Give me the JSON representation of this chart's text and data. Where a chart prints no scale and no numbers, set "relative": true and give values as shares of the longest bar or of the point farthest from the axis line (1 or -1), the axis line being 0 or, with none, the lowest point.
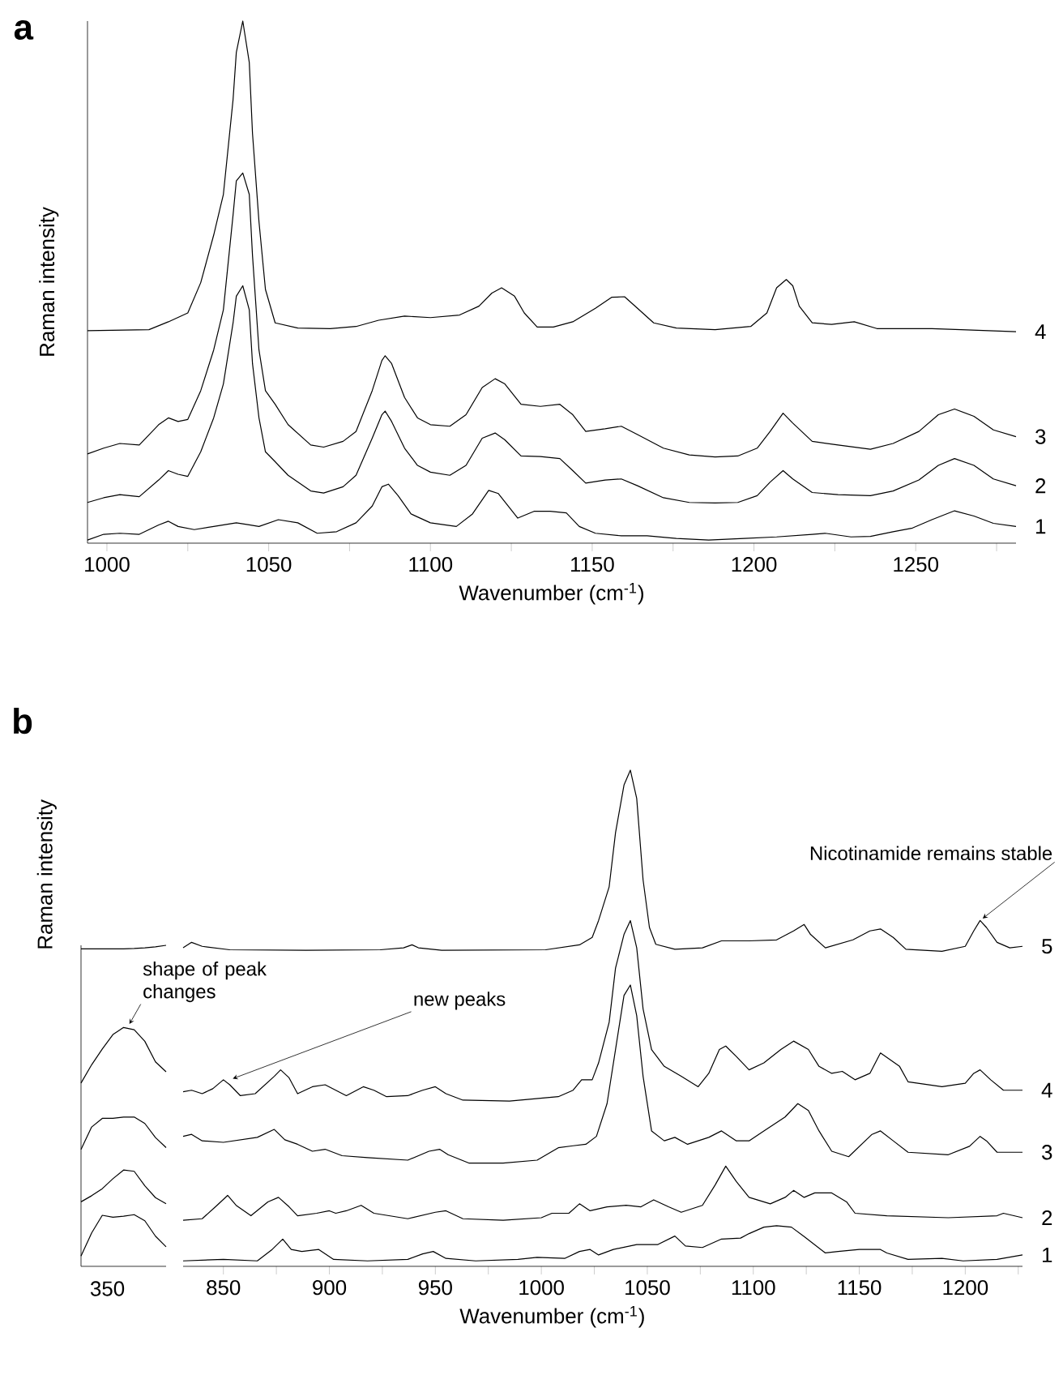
{
  "chart_data": [
    {
      "type": "line",
      "title": "a",
      "xlabel": "Wavenumber (cm$^{-1}$)",
      "ylabel": "Raman intensity",
      "relative": true,
      "xlim": [
        994,
        1281
      ],
      "xticks": [
        1000,
        {
          "value": 1025,
          "label": null
        },
        1050,
        {
          "value": 1075,
          "label": null
        },
        1100,
        {
          "value": 1125,
          "label": null
        },
        1150,
        {
          "value": 1175,
          "label": null
        },
        1200,
        {
          "value": 1225,
          "label": null
        },
        1250,
        {
          "value": 1275,
          "label": null
        }
      ],
      "series": [
        {
          "name": "1",
          "color": "#000000",
          "x": [
            994,
            999,
            1004,
            1010,
            1016,
            1019,
            1022,
            1027,
            1033,
            1040,
            1044,
            1047,
            1053,
            1059,
            1065,
            1071,
            1077,
            1082,
            1085,
            1087,
            1090,
            1094,
            1100,
            1108,
            1113,
            1118,
            1121,
            1127,
            1132,
            1137,
            1142,
            1146,
            1151,
            1159,
            1167,
            1176,
            1186,
            1197,
            1207,
            1218,
            1222,
            1230,
            1236,
            1243,
            1249,
            1255,
            1262,
            1268,
            1274,
            1281
          ],
          "values": [
            0.006,
            0.017,
            0.019,
            0.017,
            0.035,
            0.042,
            0.032,
            0.026,
            0.032,
            0.039,
            0.035,
            0.032,
            0.045,
            0.039,
            0.019,
            0.022,
            0.039,
            0.071,
            0.108,
            0.113,
            0.091,
            0.056,
            0.039,
            0.032,
            0.056,
            0.101,
            0.095,
            0.048,
            0.061,
            0.061,
            0.058,
            0.032,
            0.019,
            0.014,
            0.014,
            0.009,
            0.006,
            0.009,
            0.012,
            0.017,
            0.019,
            0.012,
            0.013,
            0.022,
            0.029,
            0.045,
            0.062,
            0.052,
            0.038,
            0.032
          ]
        },
        {
          "name": "2",
          "color": "#000000",
          "x": [
            994,
            999,
            1004,
            1010,
            1016,
            1019,
            1022,
            1025,
            1029,
            1033,
            1036,
            1039,
            1040,
            1042,
            1044,
            1045,
            1047,
            1049,
            1052,
            1056,
            1063,
            1067,
            1073,
            1077,
            1082,
            1085,
            1086,
            1088,
            1092,
            1096,
            1100,
            1106,
            1111,
            1116,
            1120,
            1123,
            1128,
            1134,
            1140,
            1144,
            1148,
            1154,
            1159,
            1164,
            1172,
            1180,
            1188,
            1195,
            1201,
            1205,
            1209,
            1212,
            1218,
            1226,
            1236,
            1243,
            1251,
            1257,
            1262,
            1268,
            1274,
            1281
          ],
          "values": [
            0.078,
            0.087,
            0.093,
            0.089,
            0.121,
            0.139,
            0.132,
            0.128,
            0.175,
            0.24,
            0.305,
            0.422,
            0.473,
            0.493,
            0.447,
            0.344,
            0.24,
            0.175,
            0.156,
            0.13,
            0.1,
            0.096,
            0.108,
            0.13,
            0.201,
            0.246,
            0.253,
            0.233,
            0.182,
            0.149,
            0.136,
            0.13,
            0.149,
            0.201,
            0.211,
            0.198,
            0.167,
            0.166,
            0.162,
            0.139,
            0.115,
            0.121,
            0.123,
            0.11,
            0.087,
            0.078,
            0.077,
            0.078,
            0.091,
            0.117,
            0.139,
            0.123,
            0.097,
            0.093,
            0.091,
            0.1,
            0.121,
            0.149,
            0.162,
            0.149,
            0.123,
            0.11
          ]
        },
        {
          "name": "3",
          "color": "#000000",
          "x": [
            994,
            999,
            1004,
            1010,
            1016,
            1019,
            1022,
            1025,
            1029,
            1033,
            1036,
            1039,
            1040,
            1042,
            1044,
            1045,
            1047,
            1049,
            1052,
            1056,
            1063,
            1067,
            1073,
            1077,
            1082,
            1085,
            1086,
            1088,
            1092,
            1096,
            1100,
            1106,
            1111,
            1116,
            1120,
            1123,
            1128,
            1134,
            1140,
            1144,
            1148,
            1154,
            1159,
            1164,
            1172,
            1180,
            1188,
            1195,
            1201,
            1205,
            1209,
            1212,
            1218,
            1226,
            1236,
            1243,
            1251,
            1257,
            1262,
            1268,
            1274,
            1281
          ],
          "values": [
            0.171,
            0.182,
            0.191,
            0.188,
            0.227,
            0.24,
            0.233,
            0.237,
            0.292,
            0.37,
            0.447,
            0.629,
            0.694,
            0.709,
            0.668,
            0.551,
            0.37,
            0.292,
            0.266,
            0.227,
            0.188,
            0.184,
            0.195,
            0.214,
            0.292,
            0.35,
            0.359,
            0.344,
            0.279,
            0.24,
            0.227,
            0.224,
            0.246,
            0.298,
            0.315,
            0.305,
            0.266,
            0.262,
            0.266,
            0.246,
            0.214,
            0.219,
            0.224,
            0.208,
            0.182,
            0.169,
            0.165,
            0.167,
            0.182,
            0.214,
            0.249,
            0.23,
            0.195,
            0.188,
            0.18,
            0.191,
            0.214,
            0.246,
            0.257,
            0.243,
            0.217,
            0.204
          ]
        },
        {
          "name": "4",
          "color": "#000000",
          "x": [
            994,
            1013,
            1019,
            1025,
            1029,
            1033,
            1036,
            1039,
            1040,
            1042,
            1044,
            1045,
            1047,
            1049,
            1052,
            1059,
            1069,
            1077,
            1084,
            1092,
            1100,
            1109,
            1115,
            1119,
            1122,
            1126,
            1129,
            1133,
            1138,
            1144,
            1151,
            1156,
            1160,
            1164,
            1169,
            1176,
            1188,
            1199,
            1204,
            1207,
            1210,
            1212,
            1214,
            1218,
            1224,
            1231,
            1238,
            1255,
            1264,
            1281
          ],
          "values": [
            0.407,
            0.409,
            0.424,
            0.441,
            0.499,
            0.59,
            0.668,
            0.85,
            0.94,
            1.0,
            0.921,
            0.785,
            0.616,
            0.486,
            0.422,
            0.412,
            0.411,
            0.415,
            0.427,
            0.435,
            0.432,
            0.437,
            0.454,
            0.479,
            0.489,
            0.473,
            0.441,
            0.414,
            0.414,
            0.424,
            0.45,
            0.471,
            0.472,
            0.45,
            0.422,
            0.412,
            0.409,
            0.415,
            0.441,
            0.489,
            0.505,
            0.493,
            0.454,
            0.422,
            0.419,
            0.424,
            0.411,
            0.411,
            0.409,
            0.405
          ]
        }
      ]
    },
    {
      "type": "line",
      "title": "b",
      "ylabel": "Raman intensity",
      "relative": true,
      "categories": [
        null,
        null,
        null,
        null,
        null,
        null,
        null,
        null,
        null
      ],
      "annotations": [
        "shape of peak changes",
        "350"
      ],
      "series": [
        {
          "color": "#000000",
          "values": [
            0.032,
            0.104,
            0.159,
            0.153,
            0.156,
            0.161,
            0.142,
            0.094,
            0.061
          ]
        },
        {
          "color": "#000000",
          "values": [
            0.201,
            0.22,
            0.242,
            0.273,
            0.3,
            0.296,
            0.251,
            0.214,
            0.195
          ]
        },
        {
          "color": "#000000",
          "values": [
            0.364,
            0.434,
            0.461,
            0.461,
            0.465,
            0.465,
            0.445,
            0.401,
            0.37
          ]
        },
        {
          "color": "#000000",
          "values": [
            0.571,
            0.628,
            0.677,
            0.722,
            0.744,
            0.737,
            0.701,
            0.637,
            0.606
          ]
        },
        {
          "color": "#000000",
          "values": [
            0.989,
            0.989,
            0.989,
            0.989,
            0.989,
            0.99,
            0.992,
            0.995,
            1.0
          ]
        }
      ]
    },
    {
      "type": "line",
      "xlabel": "Wavenumber (cm$^{-1}$)",
      "relative": true,
      "xlim": [
        831,
        1227
      ],
      "xticks": [
        850,
        {
          "value": 875,
          "label": null
        },
        900,
        {
          "value": 925,
          "label": null
        },
        950,
        {
          "value": 975,
          "label": null
        },
        1000,
        {
          "value": 1025,
          "label": null
        },
        1050,
        {
          "value": 1075,
          "label": null
        },
        1100,
        {
          "value": 1125,
          "label": null
        },
        1150,
        {
          "value": 1175,
          "label": null
        },
        1200,
        {
          "value": 1225,
          "label": null
        }
      ],
      "annotations": [
        {
          "text": "new peaks",
          "x": 853,
          "y": 0.376
        },
        {
          "text": "Nicotinamide remains stable",
          "x": 1207,
          "y": 0.697
        }
      ],
      "series": [
        {
          "name": "1",
          "color": "#000000",
          "x": [
            831,
            850,
            866,
            873,
            878,
            882,
            887,
            895,
            902,
            918,
            937,
            944,
            949,
            955,
            969,
            989,
            998,
            1011,
            1018,
            1023,
            1027,
            1034,
            1045,
            1055,
            1063,
            1068,
            1076,
            1085,
            1094,
            1098,
            1105,
            1111,
            1118,
            1124,
            1134,
            1140,
            1150,
            1160,
            1163,
            1173,
            1189,
            1199,
            1215,
            1227
          ],
          "values": [
            0.011,
            0.014,
            0.011,
            0.034,
            0.055,
            0.034,
            0.03,
            0.034,
            0.014,
            0.011,
            0.014,
            0.025,
            0.03,
            0.016,
            0.011,
            0.014,
            0.018,
            0.016,
            0.03,
            0.034,
            0.023,
            0.034,
            0.044,
            0.044,
            0.061,
            0.041,
            0.038,
            0.055,
            0.057,
            0.066,
            0.079,
            0.082,
            0.079,
            0.06,
            0.027,
            0.03,
            0.034,
            0.034,
            0.027,
            0.014,
            0.016,
            0.011,
            0.014,
            0.023
          ]
        },
        {
          "name": "2",
          "color": "#000000",
          "x": [
            831,
            840,
            847,
            852,
            856,
            863,
            871,
            876,
            881,
            885,
            894,
            900,
            903,
            908,
            915,
            921,
            937,
            950,
            955,
            963,
            982,
            1000,
            1005,
            1013,
            1018,
            1023,
            1031,
            1040,
            1047,
            1053,
            1060,
            1066,
            1076,
            1082,
            1087,
            1092,
            1098,
            1108,
            1115,
            1119,
            1124,
            1129,
            1137,
            1144,
            1148,
            1163,
            1192,
            1215,
            1218,
            1227
          ],
          "values": [
            0.093,
            0.096,
            0.123,
            0.143,
            0.123,
            0.102,
            0.13,
            0.139,
            0.12,
            0.102,
            0.107,
            0.112,
            0.107,
            0.112,
            0.123,
            0.107,
            0.096,
            0.109,
            0.112,
            0.096,
            0.093,
            0.098,
            0.107,
            0.107,
            0.126,
            0.112,
            0.12,
            0.123,
            0.12,
            0.134,
            0.12,
            0.109,
            0.123,
            0.164,
            0.202,
            0.171,
            0.139,
            0.126,
            0.139,
            0.153,
            0.139,
            0.148,
            0.148,
            0.13,
            0.107,
            0.102,
            0.098,
            0.102,
            0.107,
            0.098
          ]
        },
        {
          "name": "3",
          "color": "#000000",
          "x": [
            831,
            835,
            840,
            850,
            866,
            874,
            879,
            885,
            892,
            898,
            906,
            918,
            937,
            947,
            952,
            956,
            966,
            982,
            998,
            1008,
            1015,
            1021,
            1026,
            1031,
            1035,
            1039,
            1042,
            1045,
            1048,
            1052,
            1058,
            1063,
            1069,
            1079,
            1085,
            1092,
            1098,
            1105,
            1115,
            1121,
            1126,
            1131,
            1137,
            1145,
            1156,
            1160,
            1166,
            1173,
            1192,
            1202,
            1207,
            1210,
            1215,
            1227
          ],
          "values": [
            0.262,
            0.266,
            0.253,
            0.25,
            0.26,
            0.276,
            0.255,
            0.246,
            0.232,
            0.236,
            0.223,
            0.219,
            0.214,
            0.232,
            0.236,
            0.225,
            0.208,
            0.208,
            0.214,
            0.239,
            0.243,
            0.246,
            0.262,
            0.328,
            0.437,
            0.546,
            0.567,
            0.505,
            0.383,
            0.273,
            0.253,
            0.26,
            0.246,
            0.26,
            0.273,
            0.253,
            0.253,
            0.273,
            0.301,
            0.328,
            0.314,
            0.273,
            0.232,
            0.221,
            0.266,
            0.273,
            0.253,
            0.23,
            0.225,
            0.242,
            0.262,
            0.253,
            0.23,
            0.23
          ]
        },
        {
          "name": "4",
          "color": "#000000",
          "x": [
            831,
            835,
            840,
            845,
            850,
            853,
            858,
            865,
            874,
            877,
            881,
            885,
            892,
            898,
            903,
            908,
            916,
            921,
            927,
            937,
            944,
            950,
            955,
            963,
            985,
            1008,
            1015,
            1019,
            1024,
            1027,
            1032,
            1035,
            1039,
            1042,
            1045,
            1048,
            1052,
            1058,
            1066,
            1074,
            1079,
            1084,
            1087,
            1092,
            1098,
            1105,
            1113,
            1119,
            1126,
            1131,
            1137,
            1142,
            1148,
            1155,
            1160,
            1169,
            1173,
            1189,
            1200,
            1204,
            1207,
            1212,
            1218,
            1227
          ],
          "values": [
            0.352,
            0.355,
            0.348,
            0.358,
            0.376,
            0.366,
            0.344,
            0.348,
            0.383,
            0.396,
            0.38,
            0.348,
            0.362,
            0.366,
            0.355,
            0.344,
            0.362,
            0.355,
            0.342,
            0.344,
            0.355,
            0.362,
            0.348,
            0.335,
            0.333,
            0.342,
            0.355,
            0.376,
            0.376,
            0.41,
            0.492,
            0.601,
            0.669,
            0.697,
            0.642,
            0.519,
            0.437,
            0.403,
            0.383,
            0.362,
            0.389,
            0.437,
            0.444,
            0.423,
            0.396,
            0.41,
            0.437,
            0.454,
            0.437,
            0.403,
            0.389,
            0.393,
            0.376,
            0.389,
            0.43,
            0.403,
            0.372,
            0.362,
            0.369,
            0.389,
            0.396,
            0.376,
            0.355,
            0.355
          ]
        },
        {
          "name": "5",
          "color": "#000000",
          "x": [
            831,
            835,
            840,
            853,
            889,
            924,
            935,
            939,
            942,
            953,
            1002,
            1018,
            1024,
            1027,
            1032,
            1035,
            1039,
            1042,
            1045,
            1048,
            1051,
            1054,
            1063,
            1076,
            1085,
            1098,
            1111,
            1119,
            1124,
            1127,
            1134,
            1147,
            1155,
            1160,
            1166,
            1172,
            1189,
            1200,
            1204,
            1207,
            1210,
            1215,
            1221,
            1227
          ],
          "values": [
            0.642,
            0.653,
            0.645,
            0.638,
            0.637,
            0.638,
            0.642,
            0.648,
            0.642,
            0.637,
            0.638,
            0.648,
            0.663,
            0.697,
            0.765,
            0.874,
            0.97,
            1.0,
            0.943,
            0.779,
            0.683,
            0.649,
            0.639,
            0.642,
            0.656,
            0.656,
            0.658,
            0.676,
            0.689,
            0.669,
            0.642,
            0.658,
            0.676,
            0.68,
            0.663,
            0.639,
            0.635,
            0.645,
            0.676,
            0.697,
            0.683,
            0.653,
            0.642,
            0.645
          ]
        }
      ]
    }
  ]
}
